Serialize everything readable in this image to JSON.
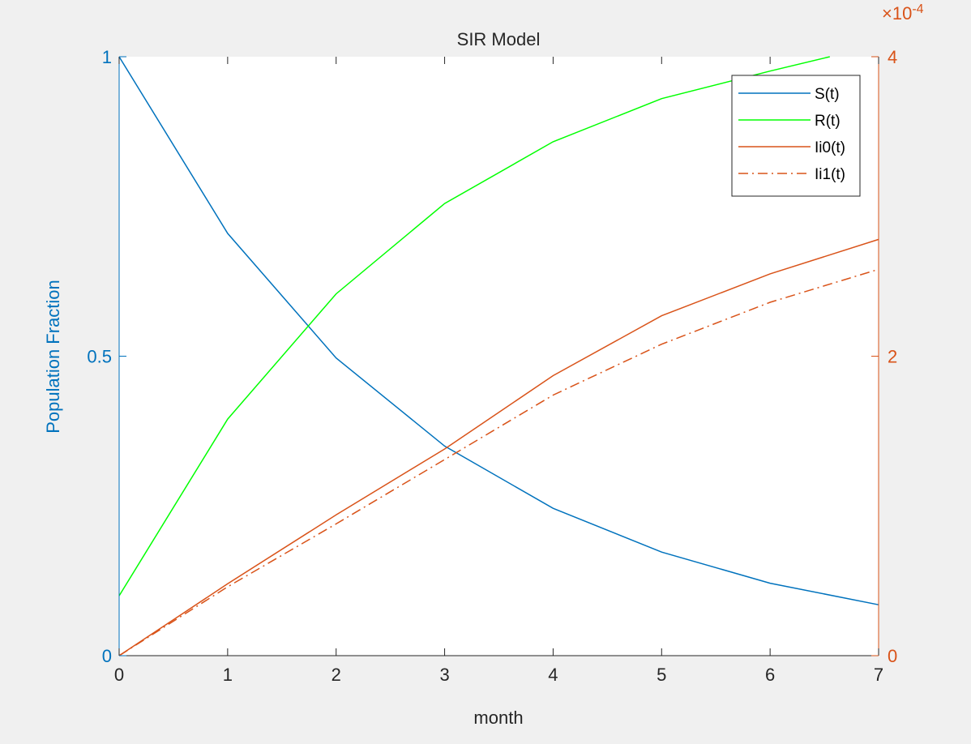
{
  "chart_data": {
    "type": "line",
    "title": "SIR Model",
    "xlabel": "month",
    "ylabel_left": "Population Fraction",
    "ylabel_right": "",
    "right_axis_exponent_label": "×10",
    "right_axis_exponent_power": "-4",
    "xlim": [
      0,
      7
    ],
    "ylim_left": [
      0,
      1
    ],
    "ylim_right": [
      0,
      0.0004
    ],
    "x_ticks": [
      "0",
      "1",
      "2",
      "3",
      "4",
      "5",
      "6",
      "7"
    ],
    "y_ticks_left": [
      "0",
      "0.5",
      "1"
    ],
    "y_ticks_right": [
      "0",
      "2",
      "4"
    ],
    "grid": false,
    "legend_position": "top-right",
    "x": [
      0,
      1,
      2,
      3,
      4,
      5,
      6,
      7
    ],
    "series": [
      {
        "name": "S(t)",
        "axis": "left",
        "color": "#0072bd",
        "style": "solid",
        "values": [
          1.0,
          0.705,
          0.497,
          0.35,
          0.246,
          0.173,
          0.121,
          0.085
        ]
      },
      {
        "name": "R(t)",
        "axis": "left",
        "color": "#00ff00",
        "style": "solid",
        "x": [
          0,
          1,
          2,
          3,
          4,
          5,
          6,
          6.55
        ],
        "values": [
          0.1,
          0.395,
          0.604,
          0.755,
          0.858,
          0.93,
          0.976,
          1.0
        ]
      },
      {
        "name": "Ii0(t)",
        "axis": "right",
        "color": "#d95319",
        "style": "solid",
        "values": [
          0.0,
          4.8e-05,
          9.4e-05,
          0.000138,
          0.000187,
          0.000227,
          0.000255,
          0.000278
        ]
      },
      {
        "name": "Ii1(t)",
        "axis": "right",
        "color": "#d95319",
        "style": "dashdot",
        "values": [
          0.0,
          4.6e-05,
          8.8e-05,
          0.000131,
          0.000174,
          0.000208,
          0.000236,
          0.000258
        ]
      }
    ]
  },
  "colors": {
    "left_axis": "#0072bd",
    "right_axis": "#d95319",
    "background": "#f0f0f0",
    "plot_area": "#ffffff"
  }
}
